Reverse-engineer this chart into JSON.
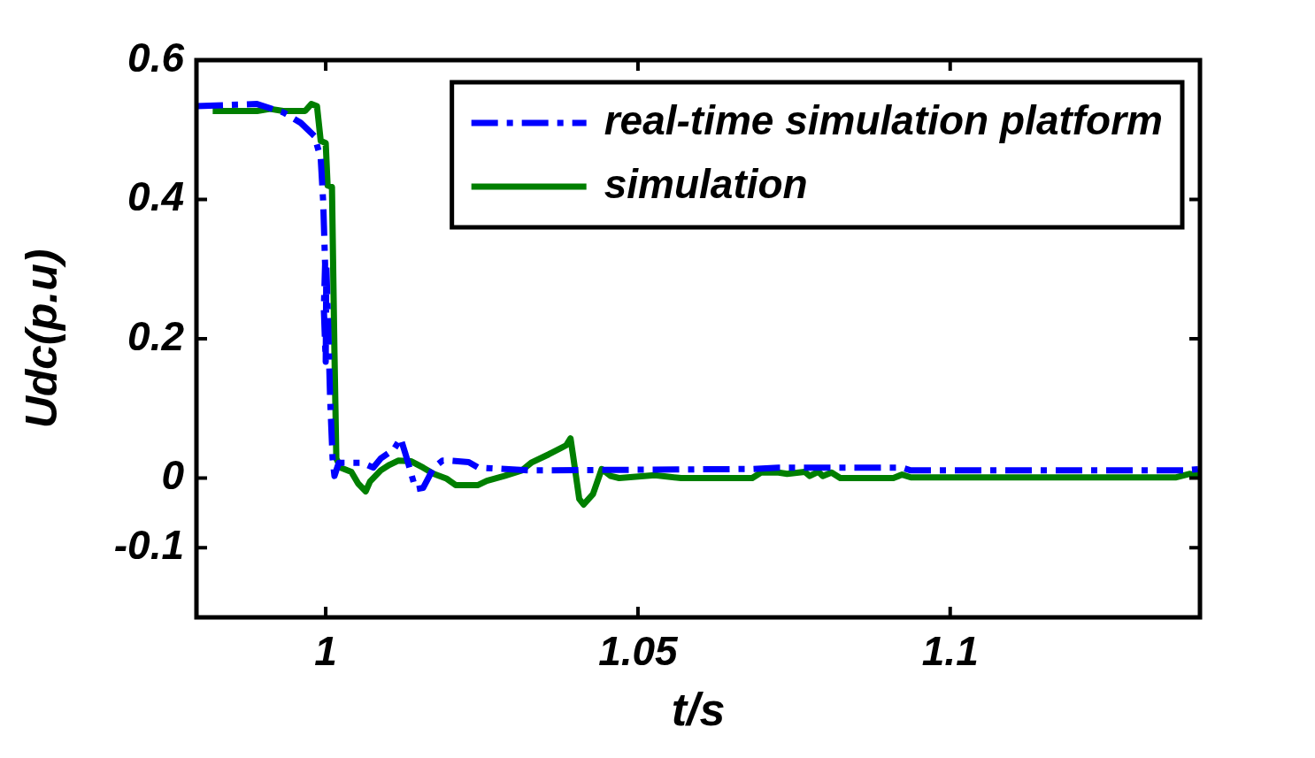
{
  "chart_data": {
    "type": "line",
    "xlabel": "t/s",
    "ylabel": "Udc(p.u)",
    "xlim": [
      0.9793,
      1.14
    ],
    "xticks": [
      1,
      1.05,
      1.1
    ],
    "ylim": [
      -0.2,
      0.6
    ],
    "yticks": [
      0.6,
      0.4,
      0.2,
      0,
      -0.1
    ],
    "grid": false,
    "legend": "top right",
    "marker": "none",
    "series": [
      {
        "name": "real-time simulation platform",
        "color": "#0000ff",
        "line_style": "dashed",
        "x": [
          0.9793,
          0.989,
          0.9932,
          0.996,
          0.9982,
          0.9992,
          0.9996,
          0.9999,
          0.9997,
          1.0,
          1.0001,
          1.0004,
          1.0007,
          1.0011,
          1.0014,
          1.0021,
          1.0059,
          1.0076,
          1.0088,
          1.0109,
          1.012,
          1.013,
          1.0144,
          1.0156,
          1.0173,
          1.0187,
          1.0201,
          1.0229,
          1.0244,
          1.0329,
          1.0683,
          1.0725,
          1.0753,
          1.0923,
          1.0937,
          1.1376,
          1.14
        ],
        "values": [
          0.534,
          0.537,
          0.525,
          0.51,
          0.491,
          0.459,
          0.396,
          0.307,
          0.243,
          0.167,
          0.306,
          0.218,
          0.116,
          0.028,
          0.003,
          0.022,
          0.022,
          0.015,
          0.028,
          0.041,
          0.057,
          0.028,
          -0.016,
          -0.014,
          0.015,
          0.025,
          0.025,
          0.023,
          0.015,
          0.011,
          0.013,
          0.015,
          0.015,
          0.015,
          0.011,
          0.011,
          0.013
        ]
      },
      {
        "name": "simulation",
        "color": "#007f00",
        "line_style": "solid",
        "x": [
          0.9819,
          0.989,
          0.9911,
          0.9932,
          0.9967,
          0.9977,
          0.9986,
          0.9992,
          1.0,
          1.0003,
          1.001,
          1.0014,
          1.0017,
          1.0024,
          1.0041,
          1.0052,
          1.0064,
          1.0071,
          1.0088,
          1.0102,
          1.0116,
          1.0137,
          1.0156,
          1.0173,
          1.0194,
          1.0208,
          1.0244,
          1.0258,
          1.0286,
          1.0314,
          1.0329,
          1.0357,
          1.0385,
          1.0392,
          1.0396,
          1.0406,
          1.0413,
          1.0428,
          1.0442,
          1.0456,
          1.047,
          1.0527,
          1.0569,
          1.0683,
          1.0697,
          1.0725,
          1.0739,
          1.0767,
          1.0775,
          1.0789,
          1.0796,
          1.081,
          1.0824,
          1.0909,
          1.0923,
          1.0937,
          1.1362,
          1.1383,
          1.14
        ],
        "values": [
          0.527,
          0.527,
          0.53,
          0.527,
          0.527,
          0.537,
          0.534,
          0.484,
          0.481,
          0.42,
          0.418,
          0.18,
          0.028,
          0.015,
          0.009,
          -0.008,
          -0.019,
          -0.005,
          0.011,
          0.019,
          0.025,
          0.024,
          0.015,
          0.006,
          -0.001,
          -0.01,
          -0.01,
          -0.004,
          0.003,
          0.011,
          0.022,
          0.034,
          0.047,
          0.057,
          0.033,
          -0.03,
          -0.038,
          -0.023,
          0.013,
          0.003,
          0.0,
          0.004,
          0.0,
          0.0,
          0.008,
          0.008,
          0.006,
          0.009,
          0.003,
          0.009,
          0.003,
          0.008,
          0.0,
          0.0,
          0.005,
          0.001,
          0.001,
          0.006,
          0.003
        ]
      }
    ]
  }
}
